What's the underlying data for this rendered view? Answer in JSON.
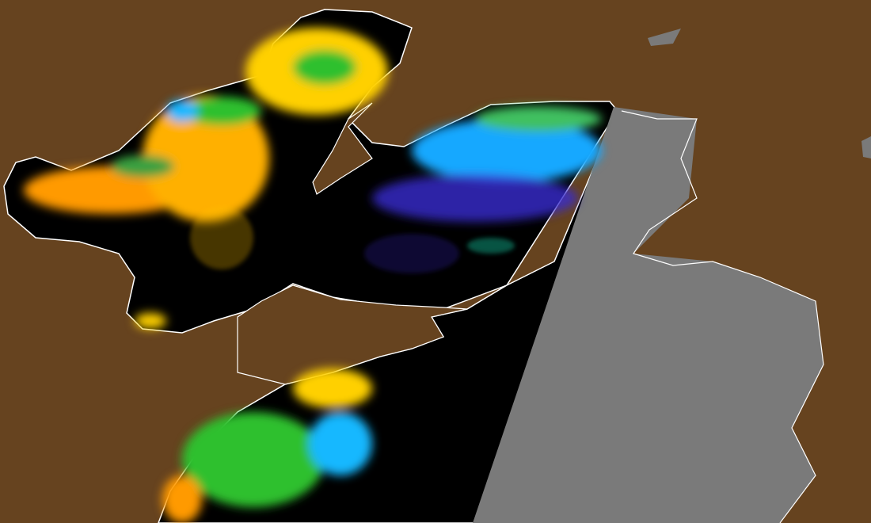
{
  "map": {
    "colors": {
      "land": "#66431f",
      "water_no_data": "#000000",
      "swath_gap": "#7a7a7a",
      "coastline": "#ffffff",
      "high": "#ff9a00",
      "mid_high": "#ffd000",
      "mid": "#2fc02f",
      "mid_low": "#18b8ff",
      "low": "#3a2bd0",
      "lowest": "#4a0b8a"
    }
  }
}
